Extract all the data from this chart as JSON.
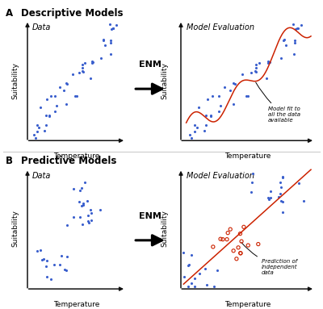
{
  "title_A": "Descriptive Models",
  "title_B": "Predictive Models",
  "label_A": "A",
  "label_B": "B",
  "subtitle_data": "Data",
  "subtitle_eval": "Model Evaluation",
  "xlabel": "Temperature",
  "ylabel": "Suitability",
  "enm_label": "ENM",
  "annotation_A": "Model fit to\nall the data\navailable",
  "annotation_B": "Prediction of\nindependent\ndata",
  "bg_color": "#ffffff",
  "dot_color_blue": "#3a5fcd",
  "dot_color_red_open": "#cc2200",
  "line_color_red": "#cc2200",
  "divider_color": "#cccccc",
  "arrow_color": "#111111"
}
